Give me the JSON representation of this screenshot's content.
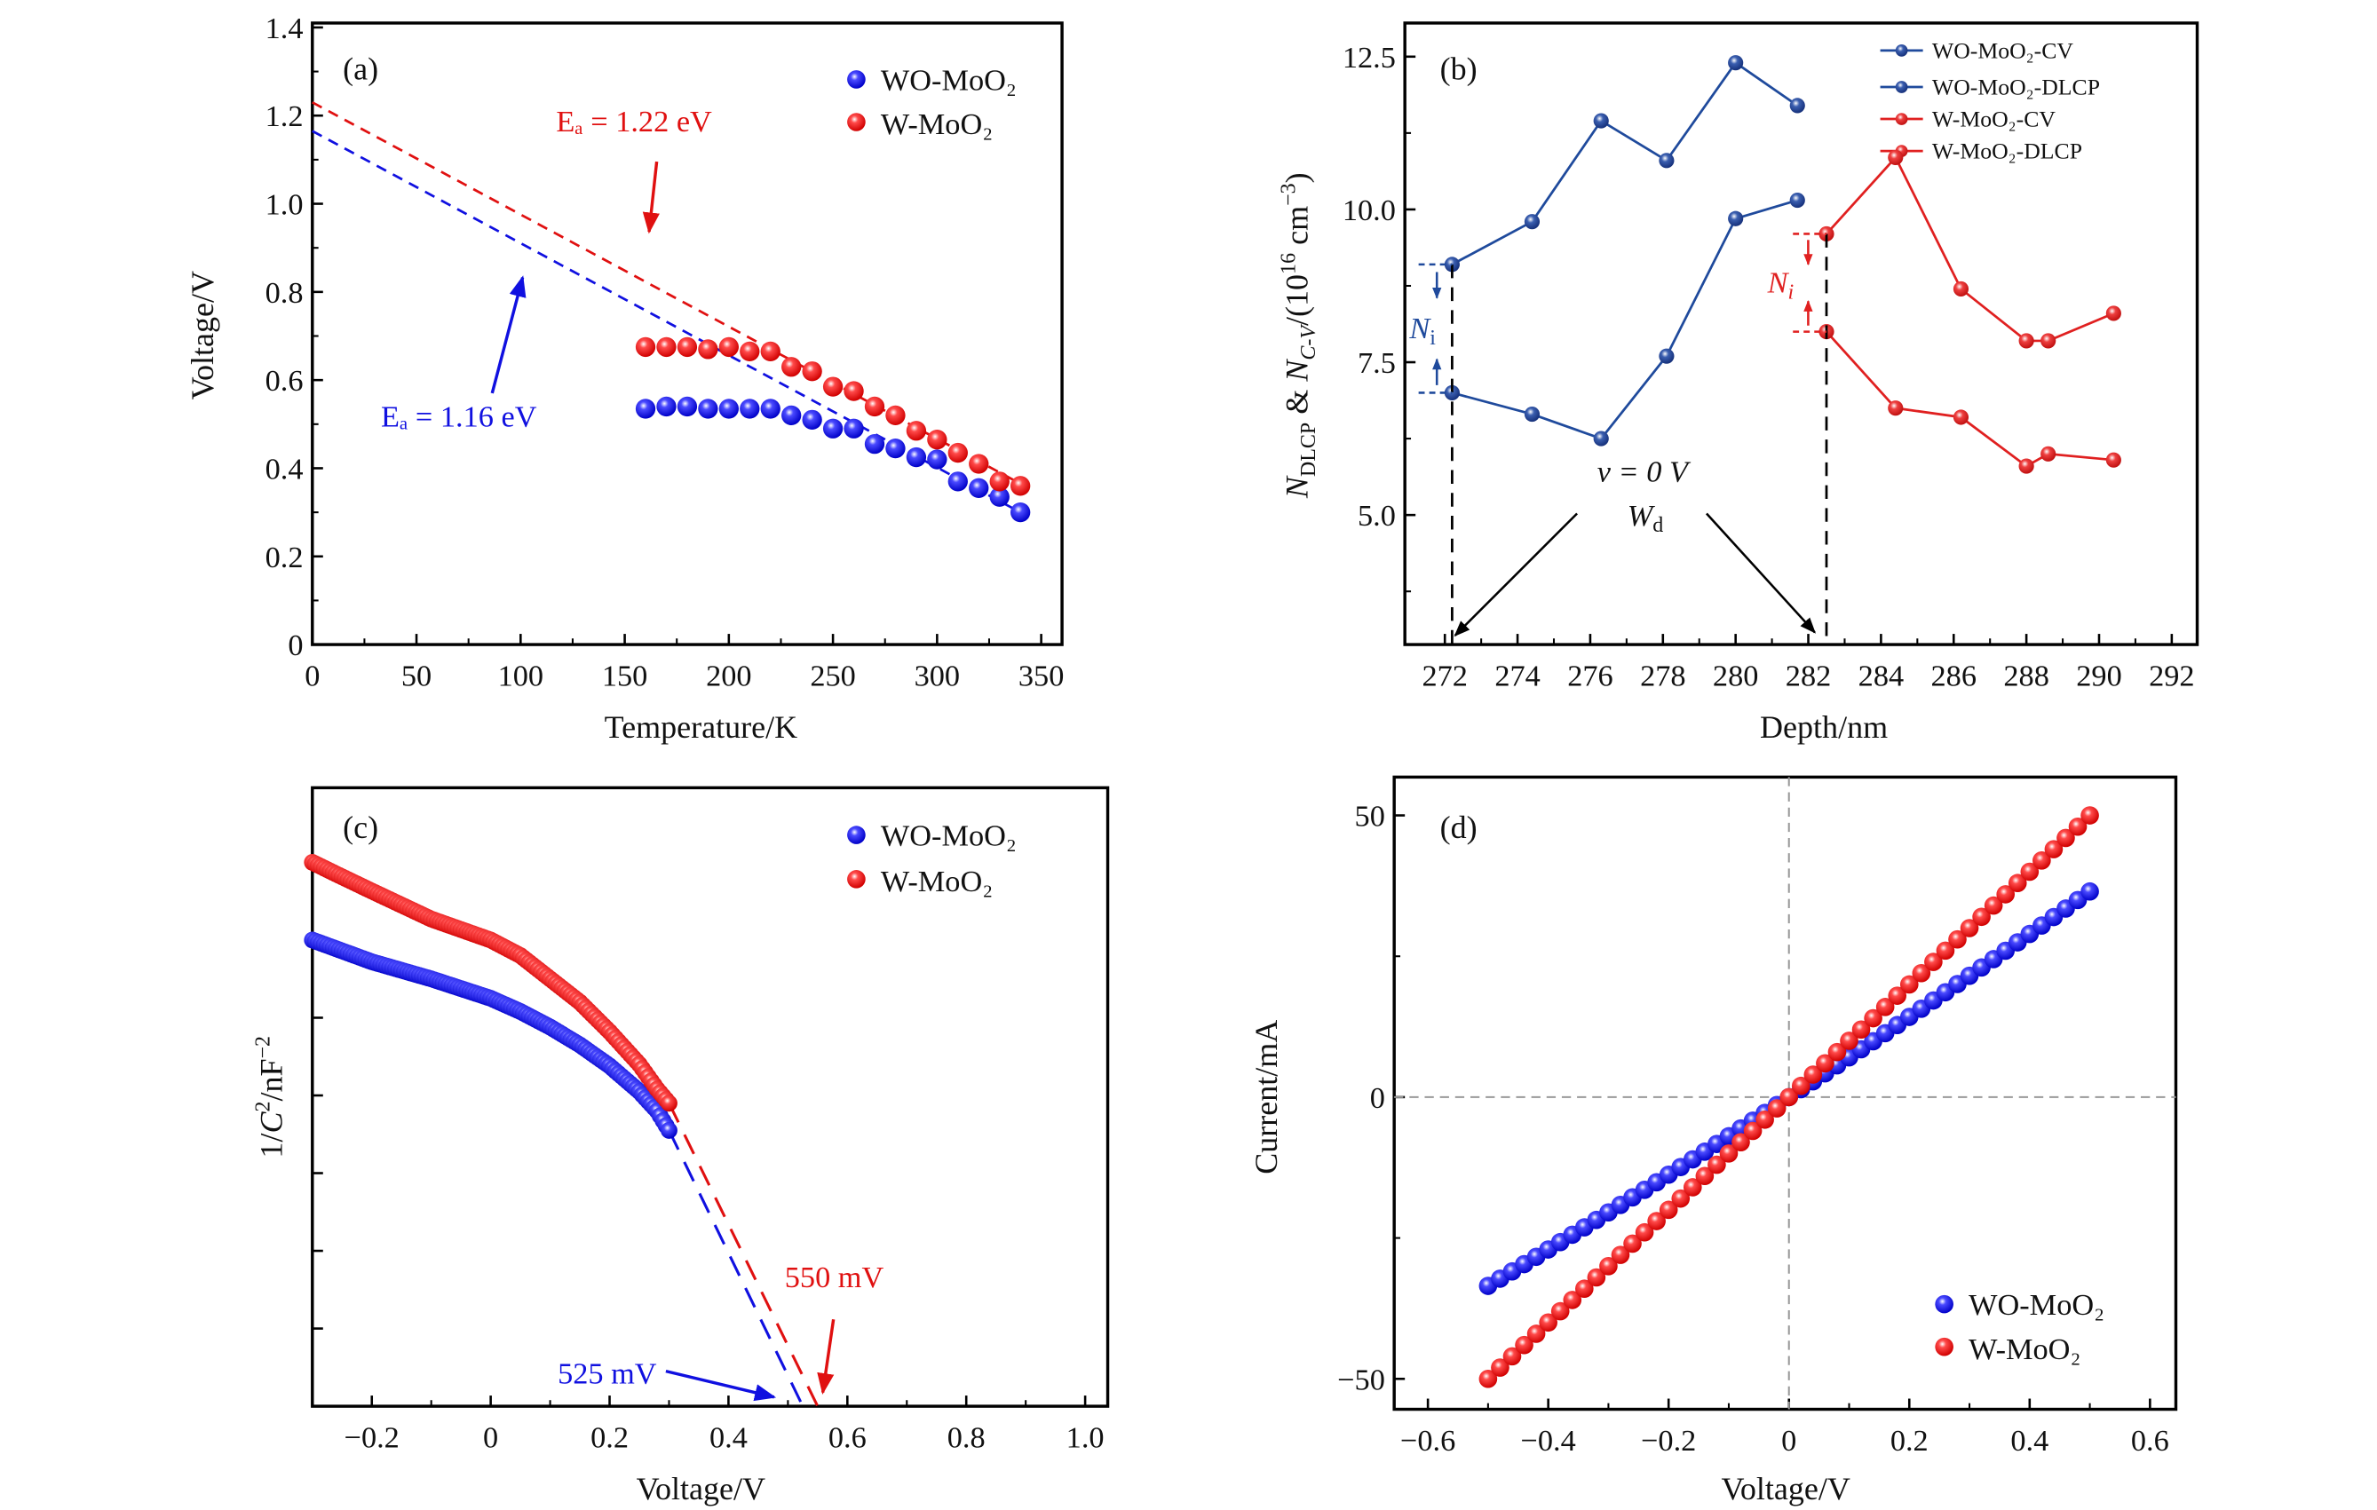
{
  "colors": {
    "blue": "#1010e0",
    "red": "#e01010",
    "navy": "#1f4a9c",
    "red_line": "#e02020"
  },
  "chart_data": [
    {
      "panel": "(a)",
      "type": "scatter",
      "xlabel": "Temperature/K",
      "ylabel": "Voltage/V",
      "xlim": [
        0,
        360
      ],
      "ylim": [
        0,
        1.41
      ],
      "xticks": [
        0,
        50,
        100,
        150,
        200,
        250,
        300,
        350
      ],
      "xtick_labels": [
        "0",
        "50",
        "100",
        "150",
        "200",
        "250",
        "300",
        "350"
      ],
      "yticks": [
        0,
        0.2,
        0.4,
        0.6,
        0.8,
        1.0,
        1.2,
        1.4
      ],
      "ytick_labels": [
        "0",
        "0.2",
        "0.4",
        "0.6",
        "0.8",
        "1.0",
        "1.2",
        "1.4"
      ],
      "legend_position": "top-right",
      "x": [
        160,
        170,
        180,
        190,
        200,
        210,
        220,
        230,
        240,
        250,
        260,
        270,
        280,
        290,
        300,
        310,
        320,
        330,
        340
      ],
      "series": [
        {
          "name": "WO-MoO₂",
          "color": "#1010e0",
          "values": [
            0.535,
            0.54,
            0.54,
            0.535,
            0.535,
            0.535,
            0.535,
            0.52,
            0.51,
            0.49,
            0.49,
            0.455,
            0.445,
            0.425,
            0.42,
            0.37,
            0.355,
            0.335,
            0.3
          ]
        },
        {
          "name": "W-MoO₂",
          "color": "#e01010",
          "values": [
            0.675,
            0.675,
            0.675,
            0.67,
            0.675,
            0.665,
            0.665,
            0.63,
            0.62,
            0.585,
            0.575,
            0.54,
            0.52,
            0.485,
            0.465,
            0.435,
            0.41,
            0.37,
            0.36
          ]
        }
      ],
      "fits": [
        {
          "name": "WO-MoO₂ fit",
          "color": "#1010e0",
          "from": [
            0,
            1.165
          ],
          "to": [
            340,
            0.3
          ],
          "label": "Eₐ = 1.16 eV"
        },
        {
          "name": "W-MoO₂ fit",
          "color": "#e01010",
          "from": [
            0,
            1.23
          ],
          "to": [
            340,
            0.365
          ],
          "label": "Eₐ = 1.22 eV"
        }
      ]
    },
    {
      "panel": "(b)",
      "type": "line",
      "xlabel": "Depth/nm",
      "ylabel_parts": [
        "N",
        "DLCP",
        " & ",
        "N",
        "C-V",
        "/(10",
        "16",
        " cm",
        "−3",
        ")"
      ],
      "xlim": [
        270.9,
        292.7
      ],
      "ylim": [
        2.88,
        13.05
      ],
      "xticks": [
        272,
        274,
        276,
        278,
        280,
        282,
        284,
        286,
        288,
        290,
        292
      ],
      "xtick_labels": [
        "272",
        "274",
        "276",
        "278",
        "280",
        "282",
        "284",
        "286",
        "288",
        "290",
        "292"
      ],
      "yticks": [
        5.0,
        7.5,
        10.0,
        12.5
      ],
      "ytick_labels": [
        "5.0",
        "7.5",
        "10.0",
        "12.5"
      ],
      "legend_position": "top-right",
      "series": [
        {
          "name": "WO-MoO₂-CV",
          "color": "#1f4a9c",
          "x": [
            272.2,
            274.4,
            276.3,
            278.1,
            280.0,
            281.7
          ],
          "values": [
            9.1,
            9.8,
            11.45,
            10.8,
            12.4,
            11.7
          ]
        },
        {
          "name": "WO-MoO₂-DLCP",
          "color": "#1f4a9c",
          "x": [
            272.2,
            274.4,
            276.3,
            278.1,
            280.0,
            281.7
          ],
          "values": [
            7.0,
            6.65,
            6.25,
            7.6,
            9.85,
            10.15
          ]
        },
        {
          "name": "W-MoO₂-CV",
          "color": "#e02020",
          "x": [
            282.5,
            284.4,
            286.2,
            288.0,
            288.6,
            290.4
          ],
          "values": [
            9.6,
            10.85,
            8.7,
            7.85,
            7.85,
            8.3
          ]
        },
        {
          "name": "W-MoO₂-DLCP",
          "color": "#e02020",
          "x": [
            282.5,
            284.4,
            286.2,
            288.0,
            288.6,
            290.4
          ],
          "values": [
            8.0,
            6.75,
            6.6,
            5.8,
            6.0,
            5.9
          ]
        }
      ],
      "annotations": {
        "ni_blue": "N",
        "ni_blue_sub": "i",
        "ni_red": "N",
        "ni_red_sub": "i",
        "bias": "v = 0 V",
        "wd": "W",
        "wd_sub": "d"
      }
    },
    {
      "panel": "(c)",
      "type": "scatter",
      "xlabel": "Voltage/V",
      "ylabel_parts": [
        "1/",
        "C",
        "2",
        "/nF",
        "−2"
      ],
      "xlim": [
        -0.3,
        1.038
      ],
      "ylim": [
        0,
        7.96
      ],
      "xticks": [
        -0.2,
        0,
        0.2,
        0.4,
        0.6,
        0.8,
        1.0
      ],
      "xtick_labels": [
        "−0.2",
        "0",
        "0.2",
        "0.4",
        "0.6",
        "0.8",
        "1.0"
      ],
      "yticks": [
        1,
        2,
        3,
        4,
        5,
        6,
        7
      ],
      "legend_position": "top-right",
      "series": [
        {
          "name": "WO-MoO₂",
          "color": "#1010e0",
          "x": [
            -0.3,
            -0.2,
            -0.1,
            0,
            0.05,
            0.1,
            0.15,
            0.2,
            0.25,
            0.28,
            0.3
          ],
          "values": [
            6.0,
            5.72,
            5.5,
            5.25,
            5.08,
            4.88,
            4.65,
            4.38,
            4.05,
            3.8,
            3.55
          ]
        },
        {
          "name": "W-MoO₂",
          "color": "#e01010",
          "x": [
            -0.3,
            -0.26,
            -0.2,
            -0.1,
            0,
            0.05,
            0.1,
            0.15,
            0.2,
            0.25,
            0.28,
            0.3
          ],
          "values": [
            7.0,
            6.85,
            6.63,
            6.27,
            6.0,
            5.8,
            5.5,
            5.2,
            4.82,
            4.4,
            4.08,
            3.9
          ]
        }
      ],
      "extrapolations": [
        {
          "color": "#1010e0",
          "from": [
            0.3,
            3.55
          ],
          "to": [
            0.525,
            0
          ],
          "label": "525 mV"
        },
        {
          "color": "#e01010",
          "from": [
            0.3,
            3.9
          ],
          "to": [
            0.55,
            0
          ],
          "label": "550 mV"
        }
      ]
    },
    {
      "panel": "(d)",
      "type": "scatter",
      "xlabel": "Voltage/V",
      "ylabel": "Current/mA",
      "xlim": [
        -0.656,
        0.643
      ],
      "ylim": [
        -55.4,
        56.8
      ],
      "xticks": [
        -0.6,
        -0.4,
        -0.2,
        0,
        0.2,
        0.4,
        0.6
      ],
      "xtick_labels": [
        "−0.6",
        "−0.4",
        "−0.2",
        "0",
        "0.2",
        "0.4",
        "0.6"
      ],
      "yticks": [
        -50,
        0,
        50
      ],
      "ytick_labels": [
        "−50",
        "0",
        "50"
      ],
      "legend_position": "bottom-right",
      "x": [
        -0.5,
        -0.48,
        -0.46,
        -0.44,
        -0.42,
        -0.4,
        -0.38,
        -0.36,
        -0.34,
        -0.32,
        -0.3,
        -0.28,
        -0.26,
        -0.24,
        -0.22,
        -0.2,
        -0.18,
        -0.16,
        -0.14,
        -0.12,
        -0.1,
        -0.08,
        -0.06,
        -0.04,
        -0.02,
        0,
        0.02,
        0.04,
        0.06,
        0.08,
        0.1,
        0.12,
        0.14,
        0.16,
        0.18,
        0.2,
        0.22,
        0.24,
        0.26,
        0.28,
        0.3,
        0.32,
        0.34,
        0.36,
        0.38,
        0.4,
        0.42,
        0.44,
        0.46,
        0.48,
        0.5
      ],
      "series": [
        {
          "name": "WO-MoO₂",
          "color": "#1010e0",
          "values": [
            -33.5,
            -32.22,
            -30.93,
            -29.64,
            -28.34,
            -27.04,
            -25.73,
            -24.42,
            -23.11,
            -21.79,
            -20.46,
            -19.13,
            -17.79,
            -16.45,
            -15.11,
            -13.76,
            -12.41,
            -11.05,
            -9.68,
            -8.31,
            -6.94,
            -5.56,
            -4.18,
            -2.79,
            -1.4,
            0,
            1.4,
            2.81,
            4.22,
            5.64,
            7.06,
            8.49,
            9.92,
            11.35,
            12.79,
            14.24,
            15.69,
            17.15,
            18.61,
            20.07,
            21.54,
            23.01,
            24.49,
            25.98,
            27.47,
            28.96,
            30.46,
            31.96,
            33.47,
            34.98,
            36.5
          ]
        },
        {
          "name": "W-MoO₂",
          "color": "#e01010",
          "values": [
            -50,
            -48,
            -46,
            -44,
            -42,
            -40,
            -38,
            -36,
            -34,
            -32,
            -30,
            -28,
            -26,
            -24,
            -22,
            -20,
            -18,
            -16,
            -14,
            -12,
            -10,
            -8,
            -6,
            -4,
            -2,
            0,
            2,
            4,
            6,
            8,
            10,
            12,
            14,
            16,
            18,
            20,
            22,
            24,
            26,
            28,
            30,
            32,
            34,
            36,
            38,
            40,
            42,
            44,
            46,
            48,
            50
          ]
        }
      ]
    }
  ]
}
